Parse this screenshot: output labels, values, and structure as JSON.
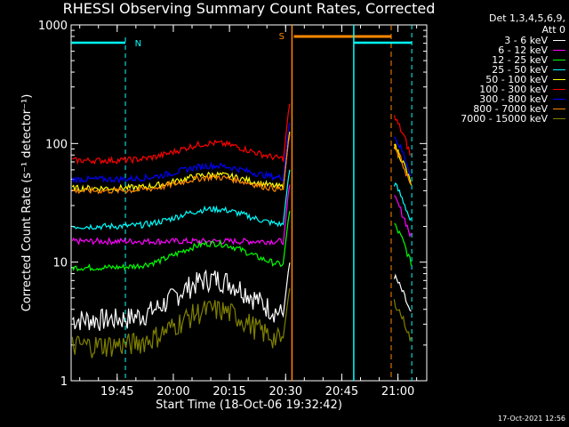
{
  "chart_data": {
    "type": "line",
    "title": "RHESSI Observing Summary Count Rates, Corrected",
    "xlabel": "Start Time (18-Oct-06 19:32:42)",
    "ylabel": "Corrected Count Rate (s⁻¹ detector⁻¹)",
    "ylog": true,
    "ylim": [
      1,
      1000
    ],
    "xlim_minutes": [
      0,
      95
    ],
    "y_ticks": [
      "1",
      "10",
      "100",
      "1000"
    ],
    "x_ticks": [
      {
        "label": "19:45",
        "minute": 12.3
      },
      {
        "label": "20:00",
        "minute": 27.3
      },
      {
        "label": "20:15",
        "minute": 42.3
      },
      {
        "label": "20:30",
        "minute": 57.3
      },
      {
        "label": "20:45",
        "minute": 72.3
      },
      {
        "label": "21:00",
        "minute": 87.3
      }
    ],
    "legend_header": [
      "Det 1,3,4,5,6,9,",
      "Att 0"
    ],
    "series": [
      {
        "name": "3 - 6 keV",
        "color": "#ffffff",
        "level": 3.3,
        "bump": 2.2
      },
      {
        "name": "6 - 12 keV",
        "color": "#ff00ff",
        "level": 15,
        "bump": 1.0
      },
      {
        "name": "12 - 25 keV",
        "color": "#00ff00",
        "level": 9,
        "bump": 1.6
      },
      {
        "name": "25 - 50 keV",
        "color": "#00ffff",
        "level": 20,
        "bump": 1.4
      },
      {
        "name": "50 - 100 keV",
        "color": "#ffff00",
        "level": 42,
        "bump": 1.3
      },
      {
        "name": "100 - 300 keV",
        "color": "#ff0000",
        "level": 72,
        "bump": 1.4
      },
      {
        "name": "300 - 800 keV",
        "color": "#0000ff",
        "level": 50,
        "bump": 1.3
      },
      {
        "name": "800 - 7000 keV",
        "color": "#ff8800",
        "level": 40,
        "bump": 1.3
      },
      {
        "name": "7000 - 15000 keV",
        "color": "#808000",
        "level": 2.0,
        "bump": 2.0
      }
    ],
    "flag_markers": [
      {
        "label": "N",
        "color": "#00ffff"
      },
      {
        "label": "S",
        "color": "#ff8800"
      }
    ],
    "data_gap_minutes": [
      59,
      86
    ],
    "timestamp": "17-Oct-2021 12:56"
  }
}
